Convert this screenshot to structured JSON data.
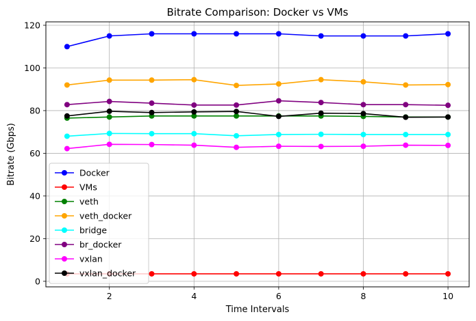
{
  "chart_data": {
    "type": "line",
    "title": "Bitrate Comparison: Docker vs VMs",
    "xlabel": "Time Intervals",
    "ylabel": "Bitrate (Gbps)",
    "xlim": [
      0.5,
      10.5
    ],
    "ylim": [
      -2.6,
      121.6
    ],
    "xticks": [
      2,
      4,
      6,
      8,
      10
    ],
    "yticks": [
      0,
      20,
      40,
      60,
      80,
      100,
      120
    ],
    "grid": true,
    "legend_position": "lower-left",
    "x": [
      1,
      2,
      3,
      4,
      5,
      6,
      7,
      8,
      9,
      10
    ],
    "series": [
      {
        "name": "Docker",
        "color": "#0000ff",
        "values": [
          110,
          115,
          116,
          116,
          116,
          116,
          115,
          115,
          115,
          116
        ]
      },
      {
        "name": "VMs",
        "color": "#ff0000",
        "values": [
          3.5,
          3.5,
          3.5,
          3.5,
          3.5,
          3.5,
          3.5,
          3.5,
          3.5,
          3.5
        ]
      },
      {
        "name": "veth",
        "color": "#008000",
        "values": [
          76.5,
          77.0,
          77.5,
          77.5,
          77.5,
          77.5,
          77.5,
          77.3,
          77.0,
          77.0
        ]
      },
      {
        "name": "veth_docker",
        "color": "#ffa500",
        "values": [
          92.0,
          94.3,
          94.3,
          94.5,
          91.8,
          92.5,
          94.5,
          93.5,
          92.0,
          92.2
        ]
      },
      {
        "name": "bridge",
        "color": "#00ffff",
        "values": [
          68.0,
          69.3,
          69.2,
          69.2,
          68.2,
          68.8,
          68.9,
          68.8,
          68.8,
          68.8
        ]
      },
      {
        "name": "br_docker",
        "color": "#800080",
        "values": [
          82.8,
          84.3,
          83.5,
          82.6,
          82.6,
          84.6,
          83.8,
          82.8,
          82.8,
          82.5
        ]
      },
      {
        "name": "vxlan",
        "color": "#ff00ff",
        "values": [
          62.2,
          64.2,
          64.1,
          63.8,
          62.8,
          63.3,
          63.2,
          63.3,
          63.8,
          63.7
        ]
      },
      {
        "name": "vxlan_docker",
        "color": "#000000",
        "values": [
          77.5,
          79.7,
          79.1,
          79.4,
          79.6,
          77.3,
          78.8,
          78.6,
          76.9,
          77.0
        ]
      }
    ]
  }
}
